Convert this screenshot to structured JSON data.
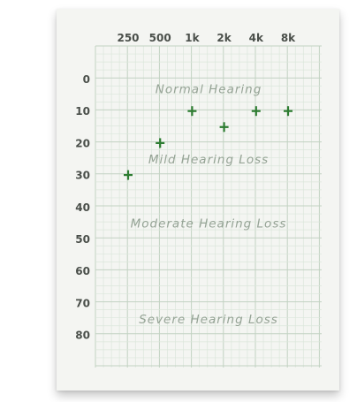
{
  "chart_data": {
    "type": "scatter",
    "frequency_labels": [
      "250",
      "500",
      "1k",
      "2k",
      "4k",
      "8k"
    ],
    "db_ticks": [
      0,
      10,
      20,
      30,
      40,
      50,
      60,
      70,
      80
    ],
    "ylim": [
      -5,
      95
    ],
    "y_inverted": true,
    "grid": "fine",
    "marker": "+",
    "points": [
      {
        "x": "250",
        "y": 30
      },
      {
        "x": "500",
        "y": 20
      },
      {
        "x": "1k",
        "y": 10
      },
      {
        "x": "2k",
        "y": 15
      },
      {
        "x": "4k",
        "y": 10
      },
      {
        "x": "8k",
        "y": 10
      }
    ],
    "regions": [
      {
        "label": "Normal Hearing",
        "y": 3
      },
      {
        "label": "Mild Hearing Loss",
        "y": 25
      },
      {
        "label": "Moderate Hearing Loss",
        "y": 45
      },
      {
        "label": "Severe Hearing Loss",
        "y": 75
      }
    ],
    "colors": {
      "marker": "#2e7d32",
      "grid_minor": "#dbe6db",
      "grid_major": "#c2d2c2",
      "text": "#4a4f4a",
      "region_text": "#95a395",
      "card": "#f4f5f2"
    }
  }
}
